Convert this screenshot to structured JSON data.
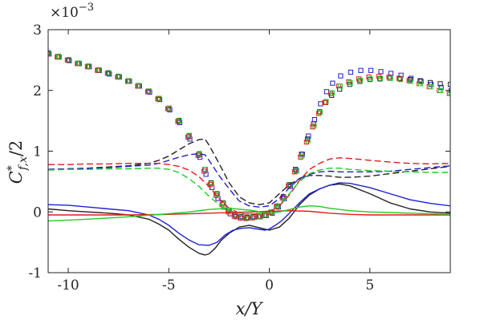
{
  "chart_data": {
    "type": "line",
    "title": "",
    "xlabel": "x/Y",
    "ylabel": "C*f,x/2",
    "ylabel_main": "C",
    "ylabel_sup": "*",
    "ylabel_sub": "f,x",
    "ylabel_tail": "/2",
    "y_multiplier": "×10",
    "y_multiplier_exp": "−3",
    "xlim": [
      -11,
      9
    ],
    "ylim": [
      -1,
      3
    ],
    "xticks": [
      -10,
      -5,
      0,
      5
    ],
    "xtick_labels": [
      "-10",
      "-5",
      "0",
      "5"
    ],
    "yticks": [
      -1,
      0,
      1,
      2,
      3
    ],
    "ytick_labels": [
      "-1",
      "0",
      "1",
      "2",
      "3"
    ],
    "grid": false,
    "colors": {
      "black": "#222222",
      "blue": "#1f1fd6",
      "red": "#e01c1c",
      "green": "#22cc22"
    },
    "series": [
      {
        "color": "#222222",
        "marker": "square",
        "style": "none",
        "x": [
          -11,
          -10.5,
          -10,
          -9.5,
          -9,
          -8.5,
          -8,
          -7.5,
          -7,
          -6.5,
          -6,
          -5.5,
          -5,
          -4.5,
          -4,
          -3.5,
          -3.2,
          -2.9,
          -2.6,
          -2.3,
          -2,
          -1.7,
          -1.4,
          -1.1,
          -0.8,
          -0.5,
          -0.2,
          0.1,
          0.4,
          0.7,
          1.0,
          1.3,
          1.6,
          1.9,
          2.2,
          2.5,
          2.8,
          3.1,
          3.5,
          4,
          4.5,
          5,
          5.5,
          6,
          6.5,
          7,
          7.5,
          8,
          8.5,
          9
        ],
        "y": [
          2.62,
          2.56,
          2.5,
          2.45,
          2.4,
          2.34,
          2.29,
          2.23,
          2.16,
          2.08,
          1.99,
          1.87,
          1.7,
          1.5,
          1.25,
          0.95,
          0.7,
          0.48,
          0.3,
          0.15,
          0.03,
          -0.05,
          -0.08,
          -0.09,
          -0.08,
          -0.07,
          -0.05,
          0.0,
          0.1,
          0.25,
          0.45,
          0.7,
          0.95,
          1.2,
          1.45,
          1.65,
          1.8,
          1.92,
          2.02,
          2.1,
          2.15,
          2.18,
          2.19,
          2.2,
          2.19,
          2.18,
          2.16,
          2.13,
          2.11,
          2.1
        ]
      },
      {
        "color": "#1f1fd6",
        "marker": "square",
        "style": "none",
        "x": [
          -11,
          -10.5,
          -10,
          -9.5,
          -9,
          -8.5,
          -8,
          -7.5,
          -7,
          -6.5,
          -6,
          -5.5,
          -5,
          -4.5,
          -4,
          -3.5,
          -3.2,
          -2.9,
          -2.6,
          -2.3,
          -2,
          -1.7,
          -1.4,
          -1.1,
          -0.8,
          -0.5,
          -0.2,
          0.1,
          0.4,
          0.7,
          1.0,
          1.3,
          1.6,
          1.9,
          2.2,
          2.5,
          2.8,
          3.1,
          3.5,
          4,
          4.5,
          5,
          5.5,
          6,
          6.5,
          7,
          7.5,
          8,
          8.5,
          9
        ],
        "y": [
          2.6,
          2.55,
          2.49,
          2.44,
          2.39,
          2.33,
          2.27,
          2.22,
          2.15,
          2.07,
          1.97,
          1.85,
          1.68,
          1.47,
          1.2,
          0.9,
          0.62,
          0.4,
          0.22,
          0.08,
          -0.03,
          -0.08,
          -0.1,
          -0.1,
          -0.09,
          -0.08,
          -0.06,
          -0.02,
          0.08,
          0.22,
          0.42,
          0.68,
          0.95,
          1.25,
          1.52,
          1.78,
          1.98,
          2.12,
          2.24,
          2.3,
          2.33,
          2.33,
          2.31,
          2.28,
          2.25,
          2.2,
          2.15,
          2.1,
          2.05,
          2.0
        ]
      },
      {
        "color": "#e01c1c",
        "marker": "square",
        "style": "none",
        "x": [
          -11,
          -10.5,
          -10,
          -9.5,
          -9,
          -8.5,
          -8,
          -7.5,
          -7,
          -6.5,
          -6,
          -5.5,
          -5,
          -4.5,
          -4,
          -3.5,
          -3.2,
          -2.9,
          -2.6,
          -2.3,
          -2,
          -1.7,
          -1.4,
          -1.1,
          -0.8,
          -0.5,
          -0.2,
          0.1,
          0.4,
          0.7,
          1.0,
          1.3,
          1.6,
          1.9,
          2.2,
          2.5,
          2.8,
          3.1,
          3.5,
          4,
          4.5,
          5,
          5.5,
          6,
          6.5,
          7,
          7.5,
          8,
          8.5,
          9
        ],
        "y": [
          2.6,
          2.55,
          2.5,
          2.44,
          2.39,
          2.33,
          2.28,
          2.22,
          2.15,
          2.07,
          1.98,
          1.86,
          1.7,
          1.49,
          1.23,
          0.93,
          0.67,
          0.45,
          0.27,
          0.12,
          0.0,
          -0.07,
          -0.1,
          -0.11,
          -0.1,
          -0.08,
          -0.06,
          -0.01,
          0.09,
          0.23,
          0.43,
          0.66,
          0.9,
          1.15,
          1.4,
          1.62,
          1.8,
          1.95,
          2.07,
          2.14,
          2.19,
          2.22,
          2.23,
          2.22,
          2.2,
          2.16,
          2.11,
          2.06,
          2.0,
          1.95
        ]
      },
      {
        "color": "#22cc22",
        "marker": "square",
        "style": "none",
        "x": [
          -11,
          -10.5,
          -10,
          -9.5,
          -9,
          -8.5,
          -8,
          -7.5,
          -7,
          -6.5,
          -6,
          -5.5,
          -5,
          -4.5,
          -4,
          -3.5,
          -3.2,
          -2.9,
          -2.6,
          -2.3,
          -2,
          -1.7,
          -1.4,
          -1.1,
          -0.8,
          -0.5,
          -0.2,
          0.1,
          0.4,
          0.7,
          1.0,
          1.3,
          1.6,
          1.9,
          2.2,
          2.5,
          2.8,
          3.1,
          3.5,
          4,
          4.5,
          5,
          5.5,
          6,
          6.5,
          7,
          7.5,
          8,
          8.5,
          9
        ],
        "y": [
          2.61,
          2.56,
          2.51,
          2.45,
          2.4,
          2.34,
          2.28,
          2.22,
          2.16,
          2.08,
          1.99,
          1.87,
          1.71,
          1.51,
          1.26,
          0.96,
          0.7,
          0.47,
          0.29,
          0.14,
          0.02,
          -0.06,
          -0.09,
          -0.1,
          -0.09,
          -0.07,
          -0.05,
          0.0,
          0.1,
          0.24,
          0.44,
          0.67,
          0.92,
          1.17,
          1.42,
          1.64,
          1.82,
          1.96,
          2.07,
          2.13,
          2.17,
          2.19,
          2.2,
          2.2,
          2.18,
          2.15,
          2.11,
          2.06,
          2.0,
          1.96
        ]
      },
      {
        "color": "#222222",
        "marker": "none",
        "style": "dashed",
        "x": [
          -11,
          -10,
          -9,
          -8,
          -7,
          -6,
          -5.5,
          -5,
          -4.5,
          -4,
          -3.5,
          -3.2,
          -3,
          -2.5,
          -2,
          -1.5,
          -1,
          -0.5,
          0,
          0.5,
          1,
          1.5,
          2,
          2.5,
          3,
          3.5,
          4,
          5,
          6,
          7,
          8,
          9
        ],
        "y": [
          0.7,
          0.71,
          0.72,
          0.74,
          0.76,
          0.8,
          0.85,
          0.92,
          1.02,
          1.12,
          1.19,
          1.2,
          1.1,
          0.8,
          0.48,
          0.25,
          0.15,
          0.12,
          0.15,
          0.3,
          0.45,
          0.55,
          0.6,
          0.6,
          0.59,
          0.57,
          0.57,
          0.59,
          0.63,
          0.67,
          0.71,
          0.75
        ]
      },
      {
        "color": "#1f1fd6",
        "marker": "none",
        "style": "dashed",
        "x": [
          -11,
          -10,
          -9,
          -8,
          -7,
          -6,
          -5.5,
          -5,
          -4.5,
          -4,
          -3.5,
          -3.2,
          -3,
          -2.5,
          -2,
          -1.5,
          -1,
          -0.5,
          0,
          0.5,
          1,
          1.5,
          2,
          2.5,
          3,
          3.5,
          4,
          5,
          6,
          7,
          8,
          9
        ],
        "y": [
          0.7,
          0.71,
          0.72,
          0.73,
          0.75,
          0.77,
          0.8,
          0.85,
          0.9,
          0.94,
          0.96,
          0.94,
          0.85,
          0.6,
          0.38,
          0.18,
          0.1,
          0.08,
          0.1,
          0.22,
          0.4,
          0.55,
          0.62,
          0.66,
          0.67,
          0.66,
          0.66,
          0.66,
          0.67,
          0.7,
          0.73,
          0.76
        ]
      },
      {
        "color": "#e01c1c",
        "marker": "none",
        "style": "dashed",
        "x": [
          -11,
          -10,
          -9,
          -8,
          -7,
          -6,
          -5.5,
          -5,
          -4.5,
          -4,
          -3.5,
          -3,
          -2.5,
          -2,
          -1.5,
          -1,
          -0.5,
          0,
          0.5,
          1,
          1.5,
          2,
          2.5,
          3,
          3.5,
          4,
          5,
          6,
          7,
          8,
          9
        ],
        "y": [
          0.78,
          0.78,
          0.79,
          0.79,
          0.8,
          0.8,
          0.8,
          0.78,
          0.75,
          0.69,
          0.58,
          0.42,
          0.22,
          0.06,
          -0.02,
          -0.04,
          -0.03,
          0.0,
          0.1,
          0.28,
          0.52,
          0.7,
          0.8,
          0.87,
          0.89,
          0.88,
          0.85,
          0.82,
          0.8,
          0.79,
          0.8
        ]
      },
      {
        "color": "#22cc22",
        "marker": "none",
        "style": "dashed",
        "x": [
          -11,
          -10,
          -9,
          -8,
          -7,
          -6,
          -5.5,
          -5,
          -4.5,
          -4,
          -3.5,
          -3,
          -2.5,
          -2,
          -1.5,
          -1,
          -0.5,
          0,
          0.5,
          1,
          1.5,
          2,
          2.5,
          3,
          3.5,
          4,
          5,
          6,
          7,
          8,
          9
        ],
        "y": [
          0.69,
          0.7,
          0.7,
          0.71,
          0.71,
          0.72,
          0.72,
          0.7,
          0.65,
          0.55,
          0.42,
          0.26,
          0.12,
          0.02,
          -0.02,
          -0.03,
          -0.02,
          0.02,
          0.12,
          0.3,
          0.5,
          0.63,
          0.69,
          0.72,
          0.72,
          0.7,
          0.68,
          0.67,
          0.66,
          0.65,
          0.65
        ]
      },
      {
        "color": "#222222",
        "marker": "none",
        "style": "solid",
        "x": [
          -11,
          -10,
          -9,
          -8,
          -7,
          -6,
          -5.5,
          -5,
          -4.5,
          -4,
          -3.5,
          -3.2,
          -3,
          -2.7,
          -2.4,
          -2,
          -1.5,
          -1,
          -0.5,
          0,
          0.5,
          1,
          1.5,
          2,
          2.5,
          3,
          3.5,
          4,
          5,
          6,
          7,
          8,
          9
        ],
        "y": [
          0.05,
          0.02,
          0.0,
          -0.02,
          -0.05,
          -0.12,
          -0.2,
          -0.3,
          -0.45,
          -0.58,
          -0.68,
          -0.71,
          -0.69,
          -0.6,
          -0.47,
          -0.35,
          -0.25,
          -0.22,
          -0.26,
          -0.3,
          -0.25,
          -0.1,
          0.12,
          0.28,
          0.38,
          0.44,
          0.46,
          0.43,
          0.3,
          0.15,
          0.05,
          0.0,
          -0.02
        ]
      },
      {
        "color": "#1f1fd6",
        "marker": "none",
        "style": "solid",
        "x": [
          -11,
          -10,
          -9,
          -8,
          -7,
          -6,
          -5.5,
          -5,
          -4.5,
          -4,
          -3.5,
          -3,
          -2.6,
          -2.2,
          -1.8,
          -1.4,
          -1,
          -0.6,
          -0.2,
          0,
          0.3,
          0.6,
          1,
          1.5,
          2,
          2.5,
          3,
          3.5,
          4,
          5,
          6,
          7,
          8,
          9
        ],
        "y": [
          0.12,
          0.11,
          0.08,
          0.05,
          0.02,
          -0.05,
          -0.12,
          -0.22,
          -0.35,
          -0.46,
          -0.54,
          -0.55,
          -0.5,
          -0.38,
          -0.3,
          -0.27,
          -0.26,
          -0.28,
          -0.3,
          -0.28,
          -0.22,
          -0.15,
          -0.02,
          0.15,
          0.3,
          0.38,
          0.44,
          0.48,
          0.47,
          0.4,
          0.3,
          0.2,
          0.14,
          0.1
        ]
      },
      {
        "color": "#e01c1c",
        "marker": "none",
        "style": "solid",
        "x": [
          -11,
          -9,
          -7,
          -5,
          -3,
          -1,
          0,
          1,
          2,
          3,
          4,
          5,
          7,
          9
        ],
        "y": [
          -0.05,
          -0.05,
          -0.05,
          -0.04,
          -0.02,
          0.0,
          0.01,
          0.02,
          0.01,
          -0.02,
          -0.04,
          -0.05,
          -0.05,
          -0.05
        ]
      },
      {
        "color": "#22cc22",
        "marker": "none",
        "style": "solid",
        "x": [
          -11,
          -9,
          -7,
          -5,
          -4,
          -3,
          -2,
          -1,
          0,
          0.5,
          1,
          1.5,
          2,
          2.5,
          3,
          4,
          5,
          7,
          9
        ],
        "y": [
          -0.15,
          -0.12,
          -0.08,
          -0.03,
          0.0,
          0.04,
          0.06,
          0.03,
          -0.02,
          0.0,
          0.04,
          0.08,
          0.1,
          0.09,
          0.06,
          0.02,
          0.0,
          -0.02,
          -0.04
        ]
      }
    ]
  }
}
